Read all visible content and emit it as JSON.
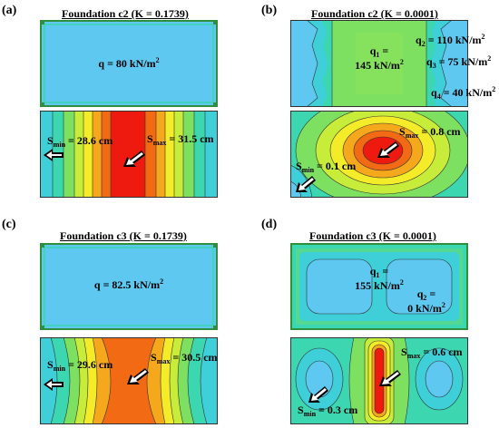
{
  "panels": [
    {
      "letter": "(a)",
      "title": "Foundation c2 (K = 0.1739)",
      "load": {
        "prefix": "q = ",
        "value": "80 kN/m",
        "sup": "2"
      },
      "s_min": {
        "S": "S",
        "sub": "min",
        "value": " = 28.6 cm"
      },
      "s_max": {
        "S": "S",
        "sub": "max",
        "value": " = 31.5 cm"
      }
    },
    {
      "letter": "(b)",
      "title": "Foundation c2 (K = 0.0001)",
      "q1": {
        "q": "q",
        "sub": "1",
        "eq": " =",
        "value": "145 kN/m",
        "sup": "2"
      },
      "q2": {
        "q": "q",
        "sub": "2",
        "value": " = 110 kN/m",
        "sup": "2"
      },
      "q3": {
        "q": "q",
        "sub": "3",
        "value": " = 75 kN/m",
        "sup": "2"
      },
      "q4": {
        "q": "q",
        "sub": "4",
        "value": " = 40 kN/m",
        "sup": "2"
      },
      "s_min": {
        "S": "S",
        "sub": "min",
        "value": " = 0.1 cm"
      },
      "s_max": {
        "S": "S",
        "sub": "max",
        "value": " = 0.8 cm"
      }
    },
    {
      "letter": "(c)",
      "title": "Foundation c3 (K = 0.1739)",
      "load": {
        "prefix": "q = ",
        "value": "82.5 kN/m",
        "sup": "2"
      },
      "s_min": {
        "S": "S",
        "sub": "min",
        "value": " = 29.6 cm"
      },
      "s_max": {
        "S": "S",
        "sub": "max",
        "value": " = 30.5 cm"
      }
    },
    {
      "letter": "(d)",
      "title": "Foundation c3 (K = 0.0001)",
      "q1": {
        "q": "q",
        "sub": "1",
        "eq": " =",
        "value": "155 kN/m",
        "sup": "2"
      },
      "q2": {
        "q": "q",
        "sub": "2",
        "eq": " =",
        "value": "0 kN/m",
        "sup": "2"
      },
      "s_min": {
        "S": "S",
        "sub": "min",
        "value": " = 0.3 cm"
      },
      "s_max": {
        "S": "S",
        "sub": "max",
        "value": " = 0.6 cm"
      }
    }
  ],
  "colors": {
    "light_blue": "#5ec8f0",
    "cyan": "#3ecfd8",
    "teal": "#3cd6b0",
    "green": "#7de060",
    "yellowgreen": "#c8ec3a",
    "yellow": "#f4ec28",
    "orange": "#f6a81c",
    "orangered": "#f26a14",
    "red": "#ee1a10",
    "border_green": "#2f8f3c"
  }
}
